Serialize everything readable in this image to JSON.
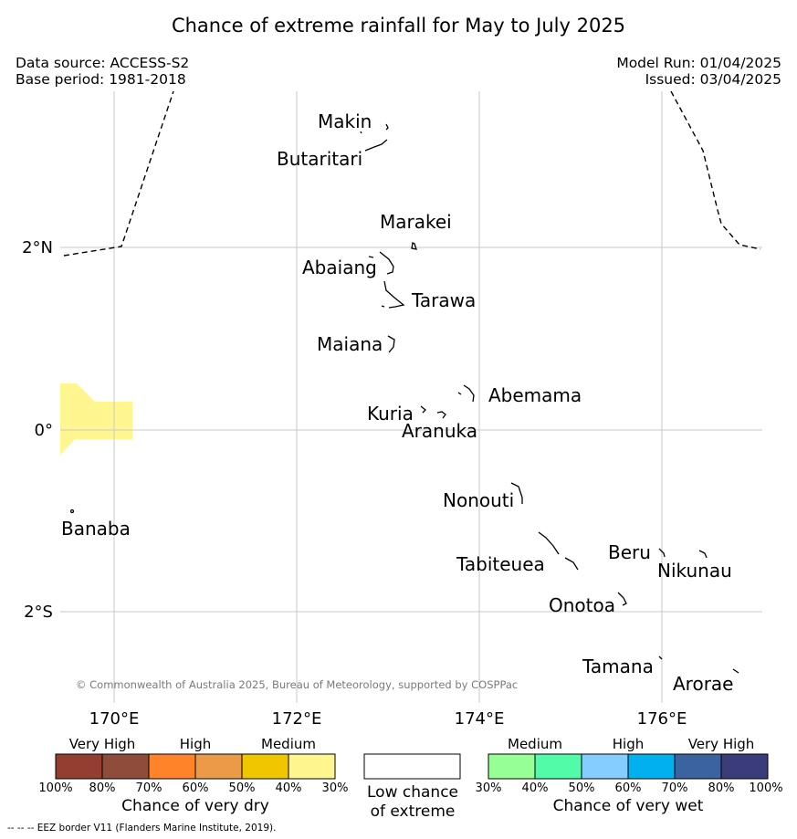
{
  "title": "Chance of extreme rainfall for May to July 2025",
  "meta": {
    "data_source": "Data source: ACCESS-S2",
    "base_period": "Base period: 1981-2018",
    "model_run": "Model Run: 01/04/2025",
    "issued": "Issued: 03/04/2025"
  },
  "map": {
    "lat_labels": [
      "2°N",
      "0°",
      "2°S"
    ],
    "lon_labels": [
      "170°E",
      "172°E",
      "174°E",
      "176°E"
    ],
    "islands": [
      "Makin",
      "Butaritari",
      "Marakei",
      "Abaiang",
      "Tarawa",
      "Maiana",
      "Abemama",
      "Kuria",
      "Aranuka",
      "Nonouti",
      "Banaba",
      "Tabiteuea",
      "Beru",
      "Nikunau",
      "Onotoa",
      "Tamana",
      "Arorae"
    ],
    "copyright": "© Commonwealth of Australia 2025, Bureau of Meteorology, supported by COSPPac",
    "colors": {
      "dry_medium_fill": "#fff68f",
      "eez_border": "#000000",
      "grid": "#c8c8c8"
    }
  },
  "legend": {
    "dry": {
      "categories": [
        "Very High",
        "High",
        "Medium"
      ],
      "ticks": [
        "100%",
        "80%",
        "70%",
        "60%",
        "50%",
        "40%",
        "30%"
      ],
      "colors": [
        "#943d31",
        "#8f4c3a",
        "#ff8329",
        "#ed9a48",
        "#f0c600",
        "#fff68f"
      ],
      "caption": "Chance of very dry"
    },
    "neutral": {
      "caption_line1": "Low chance",
      "caption_line2": "of extreme",
      "color": "#ffffff"
    },
    "wet": {
      "categories": [
        "Medium",
        "High",
        "Very High"
      ],
      "ticks": [
        "30%",
        "40%",
        "50%",
        "60%",
        "70%",
        "80%",
        "100%"
      ],
      "colors": [
        "#96ff96",
        "#52fba7",
        "#85ccff",
        "#00b0ef",
        "#3a639f",
        "#3b3d7b"
      ],
      "caption": "Chance of very wet"
    }
  },
  "footnote": "--  --  -- EEZ border V11 (Flanders Marine Institute, 2019)."
}
